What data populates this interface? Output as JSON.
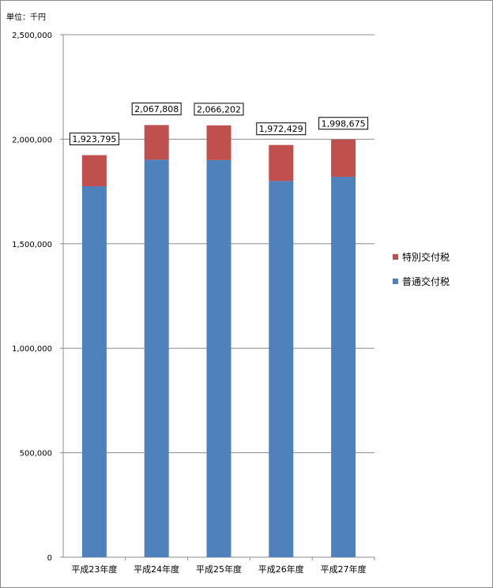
{
  "unit_label": "単位：千円",
  "chart_data": {
    "type": "bar",
    "stacked": true,
    "categories": [
      "平成23年度",
      "平成24年度",
      "平成25年度",
      "平成26年度",
      "平成27年度"
    ],
    "series": [
      {
        "name": "普通交付税",
        "color": "#4f81bd",
        "values": [
          1775000,
          1902000,
          1900000,
          1800000,
          1820000
        ]
      },
      {
        "name": "特別交付税",
        "color": "#c0504d",
        "values": [
          148795,
          165808,
          166202,
          172429,
          178675
        ]
      }
    ],
    "totals": [
      1923795,
      2067808,
      2066202,
      1972429,
      1998675
    ],
    "total_labels": [
      "1,923,795",
      "2,067,808",
      "2,066,202",
      "1,972,429",
      "1,998,675"
    ],
    "ylim": [
      0,
      2500000
    ],
    "yticks": [
      0,
      500000,
      1000000,
      1500000,
      2000000,
      2500000
    ],
    "ytick_labels": [
      "0",
      "500,000",
      "1,000,000",
      "1,500,000",
      "2,000,000",
      "2,500,000"
    ],
    "grid": true,
    "legend": [
      "特別交付税",
      "普通交付税"
    ],
    "legend_position": "right"
  }
}
